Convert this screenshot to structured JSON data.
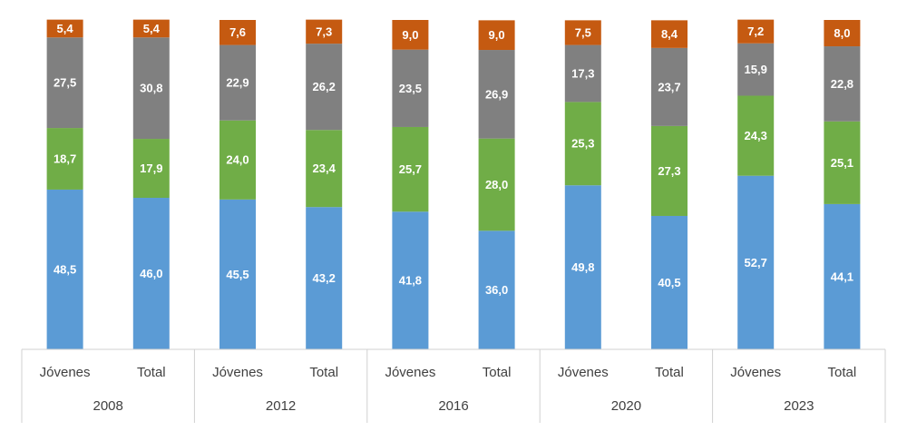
{
  "chart_data": {
    "type": "stacked_bar",
    "categories": [
      "Jóvenes",
      "Total",
      "Jóvenes",
      "Total",
      "Jóvenes",
      "Total",
      "Jóvenes",
      "Total",
      "Jóvenes",
      "Total"
    ],
    "groups": [
      "2008",
      "2012",
      "2016",
      "2020",
      "2023"
    ],
    "ylim": [
      0,
      100
    ],
    "series": [
      {
        "color": "#5b9bd5",
        "values": [
          48.5,
          46.0,
          45.5,
          43.2,
          41.8,
          36.0,
          49.8,
          40.5,
          52.7,
          44.1
        ],
        "value_labels": [
          "48,5",
          "46,0",
          "45,5",
          "43,2",
          "41,8",
          "36,0",
          "49,8",
          "40,5",
          "52,7",
          "44,1"
        ]
      },
      {
        "color": "#70ad47",
        "values": [
          18.7,
          17.9,
          24.0,
          23.4,
          25.7,
          28.0,
          25.3,
          27.3,
          24.3,
          25.1
        ],
        "value_labels": [
          "18,7",
          "17,9",
          "24,0",
          "23,4",
          "25,7",
          "28,0",
          "25,3",
          "27,3",
          "24,3",
          "25,1"
        ]
      },
      {
        "color": "#808080",
        "values": [
          27.5,
          30.8,
          22.9,
          26.2,
          23.5,
          26.9,
          17.3,
          23.7,
          15.9,
          22.8
        ],
        "value_labels": [
          "27,5",
          "30,8",
          "22,9",
          "26,2",
          "23,5",
          "26,9",
          "17,3",
          "23,7",
          "15,9",
          "22,8"
        ]
      },
      {
        "color": "#c55a11",
        "values": [
          5.4,
          5.4,
          7.6,
          7.3,
          9.0,
          9.0,
          7.5,
          8.4,
          7.2,
          8.0
        ],
        "value_labels": [
          "5,4",
          "5,4",
          "7,6",
          "7,3",
          "9,0",
          "9,0",
          "7,5",
          "8,4",
          "7,2",
          "8,0"
        ]
      }
    ]
  }
}
